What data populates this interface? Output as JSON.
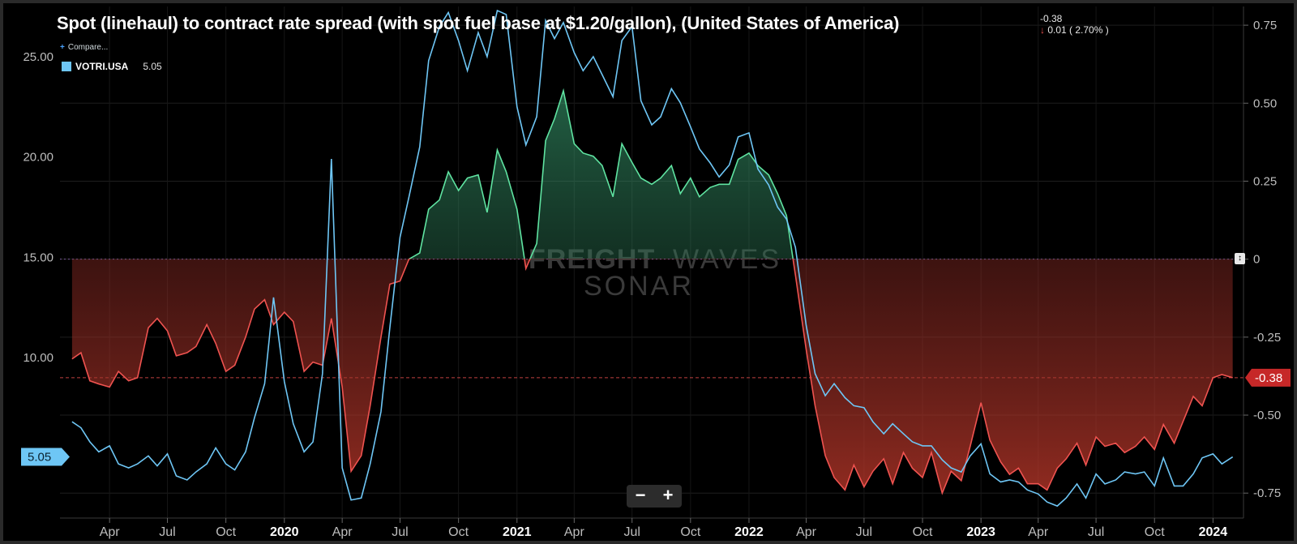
{
  "title": "Spot (linehaul) to contract rate spread (with spot fuel base at $1.20/gallon), (United States of America)",
  "change": {
    "last": "-0.38",
    "delta": "0.01 ( 2.70% )",
    "arrow": "↓"
  },
  "legend": {
    "compare_label": "Compare...",
    "compare_icon": "plus-icon",
    "series_name": "VOTRI.USA",
    "series_value": "5.05"
  },
  "zoom": {
    "minus": "−",
    "plus": "+"
  },
  "toggle_icon": "updown-icon",
  "watermark": {
    "brand_bold": "FREIGHT",
    "brand_light": "WAVES",
    "product": "SONAR"
  },
  "colors": {
    "votri": "#6ec6f5",
    "positive": "#5fe3a1",
    "negative": "#ef5350",
    "tag_right": "#c62828"
  },
  "chart_data": {
    "type": "line",
    "x_range": [
      "2019-01-13",
      "2024-02-18"
    ],
    "left_axis": {
      "series": "VOTRI.USA",
      "ylim": [
        2.0,
        27.5
      ],
      "ticks": [
        "10.00",
        "15.00",
        "20.00",
        "25.00"
      ],
      "last_value_label": "5.05"
    },
    "right_axis": {
      "series": "Spot to contract rate spread",
      "ylim": [
        -0.83,
        0.81
      ],
      "ticks": [
        "-0.75",
        "-0.50",
        "-0.25",
        "0",
        "0.25",
        "0.50",
        "0.75"
      ],
      "last_value_label": "-0.38"
    },
    "x_ticks": [
      {
        "label": "Apr",
        "date": "2019-04-01",
        "year": false
      },
      {
        "label": "Jul",
        "date": "2019-07-01",
        "year": false
      },
      {
        "label": "Oct",
        "date": "2019-10-01",
        "year": false
      },
      {
        "label": "2020",
        "date": "2020-01-01",
        "year": true
      },
      {
        "label": "Apr",
        "date": "2020-04-01",
        "year": false
      },
      {
        "label": "Jul",
        "date": "2020-07-01",
        "year": false
      },
      {
        "label": "Oct",
        "date": "2020-10-01",
        "year": false
      },
      {
        "label": "2021",
        "date": "2021-01-01",
        "year": true
      },
      {
        "label": "Apr",
        "date": "2021-04-01",
        "year": false
      },
      {
        "label": "Jul",
        "date": "2021-07-01",
        "year": false
      },
      {
        "label": "Oct",
        "date": "2021-10-01",
        "year": false
      },
      {
        "label": "2022",
        "date": "2022-01-01",
        "year": true
      },
      {
        "label": "Apr",
        "date": "2022-04-01",
        "year": false
      },
      {
        "label": "Jul",
        "date": "2022-07-01",
        "year": false
      },
      {
        "label": "Oct",
        "date": "2022-10-01",
        "year": false
      },
      {
        "label": "2023",
        "date": "2023-01-01",
        "year": true
      },
      {
        "label": "Apr",
        "date": "2023-04-01",
        "year": false
      },
      {
        "label": "Jul",
        "date": "2023-07-01",
        "year": false
      },
      {
        "label": "Oct",
        "date": "2023-10-01",
        "year": false
      },
      {
        "label": "2024",
        "date": "2024-01-01",
        "year": true
      }
    ],
    "series": [
      {
        "name": "VOTRI.USA",
        "axis": "left",
        "points": [
          [
            "2019-02-01",
            6.8
          ],
          [
            "2019-02-15",
            6.5
          ],
          [
            "2019-03-01",
            5.8
          ],
          [
            "2019-03-15",
            5.3
          ],
          [
            "2019-04-01",
            5.6
          ],
          [
            "2019-04-15",
            4.7
          ],
          [
            "2019-05-01",
            4.5
          ],
          [
            "2019-05-15",
            4.7
          ],
          [
            "2019-06-01",
            5.1
          ],
          [
            "2019-06-15",
            4.6
          ],
          [
            "2019-07-01",
            5.2
          ],
          [
            "2019-07-15",
            4.1
          ],
          [
            "2019-08-01",
            3.9
          ],
          [
            "2019-08-15",
            4.3
          ],
          [
            "2019-09-01",
            4.7
          ],
          [
            "2019-09-15",
            5.5
          ],
          [
            "2019-10-01",
            4.7
          ],
          [
            "2019-10-15",
            4.4
          ],
          [
            "2019-11-01",
            5.3
          ],
          [
            "2019-11-15",
            7.0
          ],
          [
            "2019-12-01",
            8.7
          ],
          [
            "2019-12-15",
            13.0
          ],
          [
            "2020-01-01",
            8.8
          ],
          [
            "2020-01-15",
            6.7
          ],
          [
            "2020-02-01",
            5.3
          ],
          [
            "2020-02-15",
            5.8
          ],
          [
            "2020-03-01",
            9.2
          ],
          [
            "2020-03-15",
            19.9
          ],
          [
            "2020-04-01",
            4.5
          ],
          [
            "2020-04-15",
            2.9
          ],
          [
            "2020-05-01",
            3.0
          ],
          [
            "2020-05-15",
            4.7
          ],
          [
            "2020-06-01",
            7.3
          ],
          [
            "2020-06-15",
            11.5
          ],
          [
            "2020-07-01",
            16.0
          ],
          [
            "2020-07-15",
            18.0
          ],
          [
            "2020-08-01",
            20.5
          ],
          [
            "2020-08-15",
            24.8
          ],
          [
            "2020-09-01",
            26.5
          ],
          [
            "2020-09-15",
            27.2
          ],
          [
            "2020-10-01",
            25.8
          ],
          [
            "2020-10-15",
            24.3
          ],
          [
            "2020-11-01",
            26.2
          ],
          [
            "2020-11-15",
            25.0
          ],
          [
            "2020-12-01",
            27.3
          ],
          [
            "2020-12-15",
            27.1
          ],
          [
            "2021-01-01",
            22.5
          ],
          [
            "2021-01-15",
            20.6
          ],
          [
            "2021-02-01",
            22.0
          ],
          [
            "2021-02-15",
            26.8
          ],
          [
            "2021-03-01",
            25.9
          ],
          [
            "2021-03-15",
            26.7
          ],
          [
            "2021-04-01",
            25.2
          ],
          [
            "2021-04-15",
            24.3
          ],
          [
            "2021-05-01",
            25.0
          ],
          [
            "2021-05-15",
            24.1
          ],
          [
            "2021-06-01",
            23.0
          ],
          [
            "2021-06-15",
            25.8
          ],
          [
            "2021-07-01",
            26.5
          ],
          [
            "2021-07-15",
            22.8
          ],
          [
            "2021-08-01",
            21.6
          ],
          [
            "2021-08-15",
            22.0
          ],
          [
            "2021-09-01",
            23.4
          ],
          [
            "2021-09-15",
            22.7
          ],
          [
            "2021-10-01",
            21.5
          ],
          [
            "2021-10-15",
            20.4
          ],
          [
            "2021-11-01",
            19.7
          ],
          [
            "2021-11-15",
            19.0
          ],
          [
            "2021-12-01",
            19.6
          ],
          [
            "2021-12-15",
            21.0
          ],
          [
            "2022-01-01",
            21.2
          ],
          [
            "2022-01-15",
            19.4
          ],
          [
            "2022-02-01",
            18.6
          ],
          [
            "2022-02-15",
            17.5
          ],
          [
            "2022-03-01",
            16.9
          ],
          [
            "2022-03-15",
            15.5
          ],
          [
            "2022-04-01",
            11.6
          ],
          [
            "2022-04-15",
            9.2
          ],
          [
            "2022-05-01",
            8.1
          ],
          [
            "2022-05-15",
            8.7
          ],
          [
            "2022-06-01",
            8.0
          ],
          [
            "2022-06-15",
            7.6
          ],
          [
            "2022-07-01",
            7.5
          ],
          [
            "2022-07-15",
            6.8
          ],
          [
            "2022-08-01",
            6.2
          ],
          [
            "2022-08-15",
            6.7
          ],
          [
            "2022-09-01",
            6.2
          ],
          [
            "2022-09-15",
            5.8
          ],
          [
            "2022-10-01",
            5.6
          ],
          [
            "2022-10-15",
            5.6
          ],
          [
            "2022-11-01",
            4.9
          ],
          [
            "2022-11-15",
            4.5
          ],
          [
            "2022-12-01",
            4.3
          ],
          [
            "2022-12-15",
            5.1
          ],
          [
            "2023-01-01",
            5.7
          ],
          [
            "2023-01-15",
            4.2
          ],
          [
            "2023-02-01",
            3.8
          ],
          [
            "2023-02-15",
            3.9
          ],
          [
            "2023-03-01",
            3.8
          ],
          [
            "2023-03-15",
            3.4
          ],
          [
            "2023-04-01",
            3.2
          ],
          [
            "2023-04-15",
            2.8
          ],
          [
            "2023-05-01",
            2.6
          ],
          [
            "2023-05-15",
            3.0
          ],
          [
            "2023-06-01",
            3.7
          ],
          [
            "2023-06-15",
            3.0
          ],
          [
            "2023-07-01",
            4.2
          ],
          [
            "2023-07-15",
            3.7
          ],
          [
            "2023-08-01",
            3.9
          ],
          [
            "2023-08-15",
            4.3
          ],
          [
            "2023-09-01",
            4.2
          ],
          [
            "2023-09-15",
            4.3
          ],
          [
            "2023-10-01",
            3.6
          ],
          [
            "2023-10-15",
            5.0
          ],
          [
            "2023-11-01",
            3.6
          ],
          [
            "2023-11-15",
            3.6
          ],
          [
            "2023-12-01",
            4.2
          ],
          [
            "2023-12-15",
            5.0
          ],
          [
            "2024-01-01",
            5.2
          ],
          [
            "2024-01-15",
            4.7
          ],
          [
            "2024-02-01",
            5.05
          ]
        ]
      },
      {
        "name": "Spot to contract rate spread",
        "axis": "right",
        "points": [
          [
            "2019-02-01",
            -0.32
          ],
          [
            "2019-02-15",
            -0.3
          ],
          [
            "2019-03-01",
            -0.39
          ],
          [
            "2019-03-15",
            -0.4
          ],
          [
            "2019-04-01",
            -0.41
          ],
          [
            "2019-04-15",
            -0.36
          ],
          [
            "2019-05-01",
            -0.39
          ],
          [
            "2019-05-15",
            -0.38
          ],
          [
            "2019-06-01",
            -0.22
          ],
          [
            "2019-06-15",
            -0.19
          ],
          [
            "2019-07-01",
            -0.23
          ],
          [
            "2019-07-15",
            -0.31
          ],
          [
            "2019-08-01",
            -0.3
          ],
          [
            "2019-08-15",
            -0.28
          ],
          [
            "2019-09-01",
            -0.21
          ],
          [
            "2019-09-15",
            -0.27
          ],
          [
            "2019-10-01",
            -0.36
          ],
          [
            "2019-10-15",
            -0.34
          ],
          [
            "2019-11-01",
            -0.25
          ],
          [
            "2019-11-15",
            -0.16
          ],
          [
            "2019-12-01",
            -0.13
          ],
          [
            "2019-12-15",
            -0.21
          ],
          [
            "2020-01-01",
            -0.17
          ],
          [
            "2020-01-15",
            -0.2
          ],
          [
            "2020-02-01",
            -0.36
          ],
          [
            "2020-02-15",
            -0.33
          ],
          [
            "2020-03-01",
            -0.34
          ],
          [
            "2020-03-15",
            -0.19
          ],
          [
            "2020-04-01",
            -0.41
          ],
          [
            "2020-04-15",
            -0.68
          ],
          [
            "2020-05-01",
            -0.63
          ],
          [
            "2020-05-15",
            -0.47
          ],
          [
            "2020-06-01",
            -0.25
          ],
          [
            "2020-06-15",
            -0.08
          ],
          [
            "2020-07-01",
            -0.07
          ],
          [
            "2020-07-15",
            0.0
          ],
          [
            "2020-08-01",
            0.02
          ],
          [
            "2020-08-15",
            0.16
          ],
          [
            "2020-09-01",
            0.19
          ],
          [
            "2020-09-15",
            0.28
          ],
          [
            "2020-10-01",
            0.22
          ],
          [
            "2020-10-15",
            0.26
          ],
          [
            "2020-11-01",
            0.27
          ],
          [
            "2020-11-15",
            0.15
          ],
          [
            "2020-12-01",
            0.35
          ],
          [
            "2020-12-15",
            0.28
          ],
          [
            "2021-01-01",
            0.16
          ],
          [
            "2021-01-15",
            -0.03
          ],
          [
            "2021-02-01",
            0.05
          ],
          [
            "2021-02-15",
            0.38
          ],
          [
            "2021-03-01",
            0.45
          ],
          [
            "2021-03-15",
            0.54
          ],
          [
            "2021-04-01",
            0.37
          ],
          [
            "2021-04-15",
            0.34
          ],
          [
            "2021-05-01",
            0.33
          ],
          [
            "2021-05-15",
            0.3
          ],
          [
            "2021-06-01",
            0.2
          ],
          [
            "2021-06-15",
            0.37
          ],
          [
            "2021-07-01",
            0.31
          ],
          [
            "2021-07-15",
            0.26
          ],
          [
            "2021-08-01",
            0.24
          ],
          [
            "2021-08-15",
            0.26
          ],
          [
            "2021-09-01",
            0.3
          ],
          [
            "2021-09-15",
            0.21
          ],
          [
            "2021-10-01",
            0.26
          ],
          [
            "2021-10-15",
            0.2
          ],
          [
            "2021-11-01",
            0.23
          ],
          [
            "2021-11-15",
            0.24
          ],
          [
            "2021-12-01",
            0.24
          ],
          [
            "2021-12-15",
            0.32
          ],
          [
            "2022-01-01",
            0.34
          ],
          [
            "2022-01-15",
            0.3
          ],
          [
            "2022-02-01",
            0.27
          ],
          [
            "2022-02-15",
            0.21
          ],
          [
            "2022-03-01",
            0.14
          ],
          [
            "2022-03-15",
            -0.05
          ],
          [
            "2022-04-01",
            -0.29
          ],
          [
            "2022-04-15",
            -0.47
          ],
          [
            "2022-05-01",
            -0.63
          ],
          [
            "2022-05-15",
            -0.7
          ],
          [
            "2022-06-01",
            -0.74
          ],
          [
            "2022-06-15",
            -0.66
          ],
          [
            "2022-07-01",
            -0.73
          ],
          [
            "2022-07-15",
            -0.68
          ],
          [
            "2022-08-01",
            -0.64
          ],
          [
            "2022-08-15",
            -0.72
          ],
          [
            "2022-09-01",
            -0.62
          ],
          [
            "2022-09-15",
            -0.67
          ],
          [
            "2022-10-01",
            -0.7
          ],
          [
            "2022-10-15",
            -0.62
          ],
          [
            "2022-11-01",
            -0.75
          ],
          [
            "2022-11-15",
            -0.68
          ],
          [
            "2022-12-01",
            -0.71
          ],
          [
            "2022-12-15",
            -0.6
          ],
          [
            "2023-01-01",
            -0.46
          ],
          [
            "2023-01-15",
            -0.58
          ],
          [
            "2023-02-01",
            -0.65
          ],
          [
            "2023-02-15",
            -0.69
          ],
          [
            "2023-03-01",
            -0.67
          ],
          [
            "2023-03-15",
            -0.72
          ],
          [
            "2023-04-01",
            -0.72
          ],
          [
            "2023-04-15",
            -0.74
          ],
          [
            "2023-05-01",
            -0.67
          ],
          [
            "2023-05-15",
            -0.64
          ],
          [
            "2023-06-01",
            -0.59
          ],
          [
            "2023-06-15",
            -0.66
          ],
          [
            "2023-07-01",
            -0.57
          ],
          [
            "2023-07-15",
            -0.6
          ],
          [
            "2023-08-01",
            -0.59
          ],
          [
            "2023-08-15",
            -0.62
          ],
          [
            "2023-09-01",
            -0.6
          ],
          [
            "2023-09-15",
            -0.57
          ],
          [
            "2023-10-01",
            -0.61
          ],
          [
            "2023-10-15",
            -0.53
          ],
          [
            "2023-11-01",
            -0.59
          ],
          [
            "2023-11-15",
            -0.52
          ],
          [
            "2023-12-01",
            -0.44
          ],
          [
            "2023-12-15",
            -0.47
          ],
          [
            "2024-01-01",
            -0.38
          ],
          [
            "2024-01-15",
            -0.37
          ],
          [
            "2024-02-01",
            -0.38
          ]
        ]
      }
    ]
  }
}
